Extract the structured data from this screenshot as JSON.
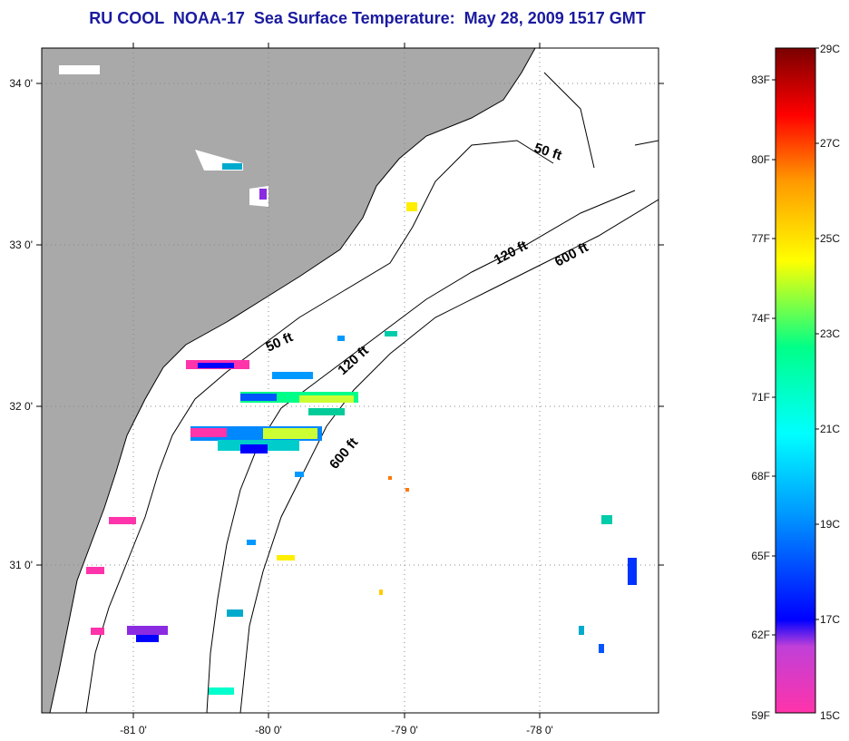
{
  "title": "RU COOL  NOAA-17  Sea Surface Temperature:  May 28, 2009 1517 GMT",
  "map": {
    "lat_labels": [
      "34 0'",
      "33 0'",
      "32 0'",
      "31 0'"
    ],
    "lon_labels": [
      "-81 0'",
      "-80 0'",
      "-79 0'",
      "-78 0'"
    ],
    "contour_labels": [
      "50 ft",
      "120 ft",
      "600 ft",
      "50 ft",
      "120 ft",
      "600 ft"
    ],
    "colors": {
      "land": "#a9a9a9",
      "ocean": "#ffffff",
      "coast": "#000000",
      "grid": "#888888"
    }
  },
  "colorbar": {
    "fahrenheit_labels": [
      "83F",
      "80F",
      "77F",
      "74F",
      "71F",
      "68F",
      "65F",
      "62F",
      "59F"
    ],
    "celsius_labels": [
      "29C",
      "27C",
      "25C",
      "23C",
      "21C",
      "19C",
      "17C",
      "15C"
    ],
    "stops": [
      "#ff33aa",
      "#8a2be2",
      "#0000ff",
      "#0099ff",
      "#00ffff",
      "#00ff88",
      "#ffff00",
      "#ff9900",
      "#ff0000",
      "#7a0000"
    ]
  }
}
